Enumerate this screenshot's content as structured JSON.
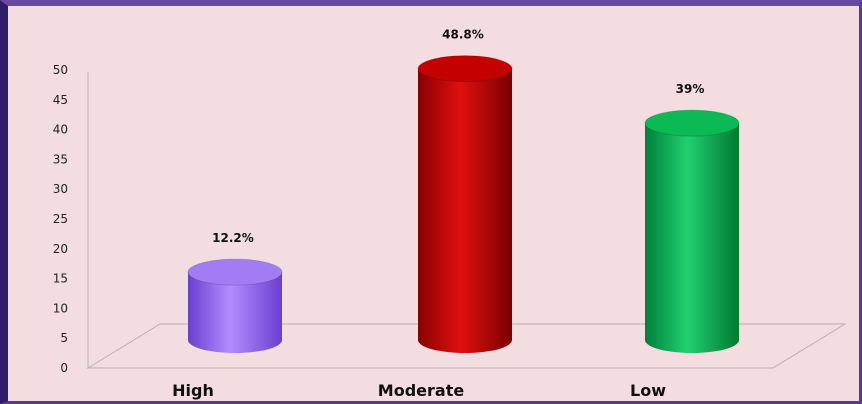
{
  "chart_data": {
    "type": "bar",
    "categories": [
      "High",
      "Moderate",
      "Low"
    ],
    "values": [
      12.2,
      48.8,
      39
    ],
    "data_labels": [
      "12.2%",
      "48.8%",
      "39%"
    ],
    "colors": [
      "#9966ff",
      "#cc0000",
      "#00b050"
    ],
    "ylim": [
      0,
      50
    ],
    "yticks": [
      "0",
      "5",
      "10",
      "15",
      "20",
      "25",
      "30",
      "35",
      "40",
      "45",
      "50"
    ],
    "grid": false,
    "style": "3d-cylinder"
  }
}
